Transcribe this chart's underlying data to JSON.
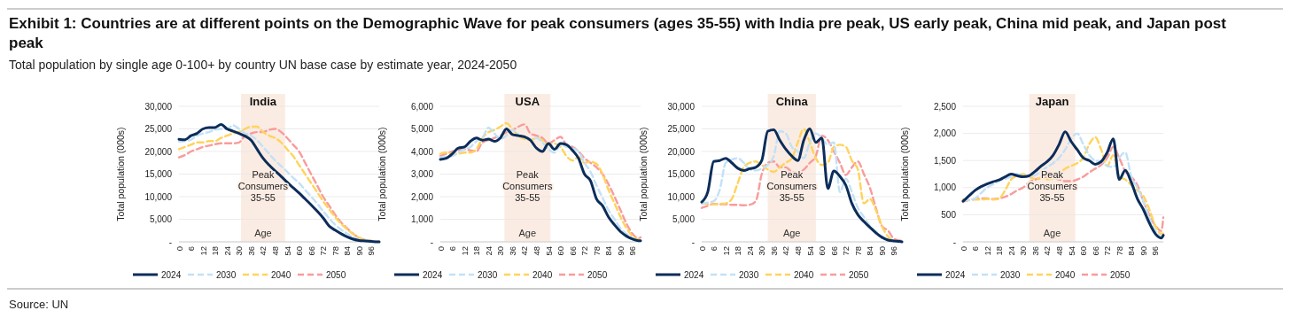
{
  "chart_data": [
    {
      "type": "other",
      "title": "Exhibit 1: Countries are at different points on the Demographic Wave for peak consumers (ages 35-55) with India pre peak, US early peak, China mid peak, and Japan post peak",
      "subtitle": "Total population by single age 0-100+ by country UN base case by estimate year, 2024-2050",
      "annotations": [
        "Source: UN"
      ]
    },
    {
      "type": "line",
      "title": "India",
      "xlabel": "Age",
      "ylabel": "Total population (000s)",
      "legend": "bottom",
      "grid": "y",
      "x": [
        0,
        3,
        6,
        9,
        12,
        15,
        18,
        21,
        24,
        27,
        30,
        33,
        36,
        39,
        42,
        45,
        48,
        51,
        54,
        57,
        60,
        63,
        66,
        69,
        72,
        75,
        78,
        81,
        84,
        87,
        90,
        93,
        96,
        99,
        100
      ],
      "xlim": [
        0,
        100
      ],
      "xticks": [
        0,
        6,
        12,
        18,
        24,
        30,
        36,
        42,
        48,
        54,
        60,
        66,
        72,
        78,
        84,
        90,
        96
      ],
      "ylim": [
        0,
        30000
      ],
      "yticks": [
        {
          "value": 0,
          "label": "-"
        },
        {
          "value": 5000,
          "label": "5,000"
        },
        {
          "value": 10000,
          "label": "10,000"
        },
        {
          "value": 15000,
          "label": "15,000"
        },
        {
          "value": 20000,
          "label": "20,000"
        },
        {
          "value": 25000,
          "label": "25,000"
        },
        {
          "value": 30000,
          "label": "30,000"
        }
      ],
      "bands": [
        {
          "axis": "x",
          "from": 31,
          "to": 53,
          "label": "Peak Consumers 35-55",
          "color": "#fbece3"
        }
      ],
      "series": [
        {
          "name": "2024",
          "color": "#0c2d5a",
          "line_style": "solid",
          "values": [
            22700,
            22600,
            23500,
            24000,
            25000,
            25300,
            25300,
            26000,
            25000,
            24500,
            24000,
            23400,
            22500,
            20500,
            18500,
            17000,
            15700,
            14500,
            13200,
            12000,
            10800,
            9500,
            8200,
            6800,
            5300,
            3500,
            2600,
            1800,
            1100,
            600,
            300,
            200,
            100,
            0,
            0
          ]
        },
        {
          "name": "2030",
          "color": "#c2e1f7",
          "line_style": "dashed",
          "values": [
            22200,
            22300,
            22600,
            23500,
            24000,
            24300,
            24800,
            25000,
            25000,
            25800,
            25000,
            24000,
            23500,
            22500,
            21000,
            19500,
            18000,
            16800,
            15500,
            14200,
            13000,
            11500,
            10000,
            8500,
            6800,
            5200,
            3800,
            2700,
            1800,
            1000,
            500,
            300,
            100,
            100,
            0
          ]
        },
        {
          "name": "2040",
          "color": "#ffd35c",
          "line_style": "dashed",
          "values": [
            20500,
            21000,
            21500,
            22000,
            22000,
            22300,
            22300,
            23000,
            23500,
            24000,
            24300,
            25000,
            25500,
            25500,
            24300,
            23500,
            23000,
            22000,
            20500,
            19000,
            17000,
            15000,
            13000,
            11000,
            9000,
            7200,
            5500,
            4000,
            2800,
            1700,
            900,
            400,
            200,
            100,
            100
          ]
        },
        {
          "name": "2050",
          "color": "#f89c9c",
          "line_style": "dashed",
          "values": [
            18700,
            19200,
            20000,
            20500,
            21000,
            21300,
            21600,
            21800,
            21800,
            21800,
            22000,
            23500,
            24000,
            24300,
            24300,
            24800,
            25000,
            24300,
            23000,
            21500,
            20000,
            17500,
            15000,
            12500,
            10000,
            8000,
            6000,
            4300,
            3000,
            1800,
            900,
            400,
            200,
            100,
            100
          ]
        }
      ]
    },
    {
      "type": "line",
      "title": "USA",
      "xlabel": "Age",
      "ylabel": "Total population (000s)",
      "legend": "bottom",
      "grid": "y",
      "x": [
        0,
        3,
        6,
        9,
        12,
        15,
        18,
        21,
        24,
        27,
        30,
        33,
        36,
        39,
        42,
        45,
        48,
        51,
        54,
        57,
        60,
        63,
        66,
        69,
        72,
        75,
        78,
        81,
        84,
        87,
        90,
        93,
        96,
        99,
        100
      ],
      "xlim": [
        0,
        100
      ],
      "xticks": [
        0,
        6,
        12,
        18,
        24,
        30,
        36,
        42,
        48,
        54,
        60,
        66,
        72,
        78,
        84,
        90,
        96
      ],
      "ylim": [
        0,
        6000
      ],
      "yticks": [
        {
          "value": 0,
          "label": "-"
        },
        {
          "value": 1000,
          "label": "1,000"
        },
        {
          "value": 2000,
          "label": "2,000"
        },
        {
          "value": 3000,
          "label": "3,000"
        },
        {
          "value": 4000,
          "label": "4,000"
        },
        {
          "value": 5000,
          "label": "5,000"
        },
        {
          "value": 6000,
          "label": "6,000"
        }
      ],
      "bands": [
        {
          "axis": "x",
          "from": 32,
          "to": 55,
          "label": "Peak Consumers 35-55",
          "color": "#fbece3"
        }
      ],
      "series": [
        {
          "name": "2024",
          "color": "#0c2d5a",
          "line_style": "solid",
          "values": [
            3650,
            3700,
            3900,
            4150,
            4200,
            4450,
            4600,
            4500,
            4550,
            4450,
            4600,
            5000,
            4750,
            4700,
            4650,
            4500,
            4150,
            4000,
            4350,
            4100,
            4350,
            4300,
            4050,
            3700,
            3000,
            2700,
            1900,
            1600,
            1100,
            750,
            450,
            250,
            120,
            50,
            50
          ]
        },
        {
          "name": "2030",
          "color": "#c2e1f7",
          "line_style": "dashed",
          "values": [
            3750,
            3750,
            3800,
            3950,
            4100,
            4200,
            4450,
            4600,
            5050,
            4800,
            4550,
            4700,
            4950,
            4750,
            4600,
            4550,
            4600,
            4400,
            4100,
            3950,
            4300,
            4200,
            4150,
            4000,
            3500,
            3100,
            2500,
            1950,
            1400,
            1000,
            600,
            350,
            150,
            60,
            60
          ]
        },
        {
          "name": "2040",
          "color": "#ffd35c",
          "line_style": "dashed",
          "values": [
            3900,
            3950,
            3900,
            3900,
            3950,
            3950,
            4100,
            4600,
            4850,
            4950,
            5100,
            5250,
            5000,
            4700,
            4550,
            4500,
            4600,
            4500,
            4300,
            4350,
            4200,
            3800,
            3600,
            3750,
            3500,
            3550,
            3450,
            3000,
            2300,
            1700,
            1100,
            600,
            250,
            100,
            80
          ]
        },
        {
          "name": "2050",
          "color": "#f89c9c",
          "line_style": "dashed",
          "values": [
            3800,
            3900,
            4000,
            4050,
            4100,
            4050,
            4000,
            4400,
            4500,
            4600,
            4700,
            4850,
            4950,
            5100,
            5200,
            4800,
            4700,
            4600,
            4350,
            4500,
            4650,
            4300,
            4200,
            4000,
            3700,
            3500,
            3300,
            3000,
            2550,
            2000,
            1400,
            800,
            350,
            150,
            200
          ]
        }
      ]
    },
    {
      "type": "line",
      "title": "China",
      "xlabel": "Age",
      "ylabel": "Total population (000s)",
      "legend": "bottom",
      "grid": "y",
      "x": [
        0,
        3,
        6,
        9,
        12,
        15,
        18,
        21,
        24,
        27,
        30,
        33,
        36,
        39,
        42,
        45,
        48,
        51,
        54,
        57,
        60,
        63,
        66,
        69,
        72,
        75,
        78,
        81,
        84,
        87,
        90,
        93,
        96,
        99,
        100
      ],
      "xlim": [
        0,
        100
      ],
      "xticks": [
        0,
        6,
        12,
        18,
        24,
        30,
        36,
        42,
        48,
        54,
        60,
        66,
        72,
        78,
        84,
        90,
        96
      ],
      "ylim": [
        0,
        30000
      ],
      "yticks": [
        {
          "value": 0,
          "label": "-"
        },
        {
          "value": 5000,
          "label": "5,000"
        },
        {
          "value": 10000,
          "label": "10,000"
        },
        {
          "value": 15000,
          "label": "15,000"
        },
        {
          "value": 20000,
          "label": "20,000"
        },
        {
          "value": 25000,
          "label": "25,000"
        },
        {
          "value": 30000,
          "label": "30,000"
        }
      ],
      "bands": [
        {
          "axis": "x",
          "from": 33,
          "to": 57,
          "label": "Peak Consumers 35-55",
          "color": "#fbece3"
        }
      ],
      "series": [
        {
          "name": "2024",
          "color": "#0c2d5a",
          "line_style": "solid",
          "values": [
            8800,
            11000,
            17800,
            18000,
            18500,
            17500,
            16300,
            15800,
            16200,
            16500,
            18000,
            24500,
            24800,
            22500,
            20500,
            19000,
            18000,
            22500,
            25000,
            22000,
            23000,
            11800,
            15700,
            14500,
            12500,
            8500,
            6000,
            4500,
            3200,
            2000,
            1000,
            400,
            200,
            100,
            0
          ]
        },
        {
          "name": "2030",
          "color": "#c2e1f7",
          "line_style": "dashed",
          "values": [
            8500,
            8700,
            9000,
            11500,
            17500,
            18200,
            18500,
            17500,
            16000,
            15800,
            16200,
            17000,
            19000,
            24500,
            24000,
            21000,
            20000,
            18500,
            22000,
            24000,
            23000,
            21500,
            22000,
            11000,
            14000,
            11000,
            7500,
            5500,
            3500,
            2300,
            1200,
            500,
            200,
            100,
            0
          ]
        },
        {
          "name": "2040",
          "color": "#ffd35c",
          "line_style": "dashed",
          "values": [
            8500,
            8400,
            8300,
            8400,
            8500,
            9500,
            13000,
            16500,
            17500,
            17800,
            17000,
            16000,
            15500,
            16500,
            17500,
            18500,
            22000,
            25000,
            22000,
            18500,
            17000,
            17500,
            21000,
            21500,
            21000,
            18000,
            16000,
            8500,
            9500,
            7000,
            3500,
            1200,
            300,
            100,
            100
          ]
        },
        {
          "name": "2050",
          "color": "#f89c9c",
          "line_style": "dashed",
          "values": [
            7500,
            8000,
            8400,
            8300,
            8300,
            8200,
            8200,
            8100,
            8200,
            9000,
            15000,
            17500,
            17800,
            16500,
            16500,
            15500,
            15300,
            16000,
            17500,
            19000,
            23500,
            22500,
            20000,
            17500,
            14800,
            16500,
            17800,
            15000,
            12000,
            7500,
            3500,
            2500,
            700,
            300,
            200
          ]
        }
      ]
    },
    {
      "type": "line",
      "title": "Japan",
      "xlabel": "Age",
      "ylabel": "Total population (000s)",
      "legend": "bottom",
      "grid": "y",
      "x": [
        0,
        3,
        6,
        9,
        12,
        15,
        18,
        21,
        24,
        27,
        30,
        33,
        36,
        39,
        42,
        45,
        48,
        51,
        54,
        57,
        60,
        63,
        66,
        69,
        72,
        75,
        78,
        81,
        84,
        87,
        90,
        93,
        96,
        99,
        100
      ],
      "xlim": [
        0,
        100
      ],
      "xticks": [
        0,
        6,
        12,
        18,
        24,
        30,
        36,
        42,
        48,
        54,
        60,
        66,
        72,
        78,
        84,
        90,
        96
      ],
      "ylim": [
        0,
        2500
      ],
      "yticks": [
        {
          "value": 0,
          "label": "-"
        },
        500,
        {
          "value": 1000,
          "label": "1,000"
        },
        {
          "value": 1500,
          "label": "1,500"
        },
        {
          "value": 2000,
          "label": "2,000"
        },
        {
          "value": 2500,
          "label": "2,500"
        }
      ],
      "bands": [
        {
          "axis": "x",
          "from": 33,
          "to": 56,
          "label": "Peak Consumers 35-55",
          "color": "#fbece3"
        }
      ],
      "series": [
        {
          "name": "2024",
          "color": "#0c2d5a",
          "line_style": "solid",
          "values": [
            750,
            850,
            950,
            1020,
            1070,
            1110,
            1140,
            1200,
            1250,
            1220,
            1200,
            1220,
            1300,
            1400,
            1480,
            1600,
            1800,
            2030,
            1850,
            1700,
            1550,
            1500,
            1430,
            1480,
            1650,
            1900,
            1150,
            1320,
            1100,
            800,
            600,
            350,
            150,
            70,
            120
          ]
        },
        {
          "name": "2030",
          "color": "#c2e1f7",
          "line_style": "dashed",
          "values": [
            760,
            770,
            800,
            900,
            1000,
            1060,
            1120,
            1160,
            1200,
            1250,
            1220,
            1200,
            1230,
            1300,
            1380,
            1450,
            1550,
            1700,
            1900,
            2000,
            1800,
            1600,
            1500,
            1480,
            1400,
            1380,
            1550,
            1650,
            1200,
            1000,
            750,
            450,
            200,
            100,
            120
          ]
        },
        {
          "name": "2040",
          "color": "#ffd35c",
          "line_style": "dashed",
          "values": [
            780,
            770,
            780,
            780,
            790,
            780,
            800,
            950,
            1150,
            1220,
            1250,
            1200,
            1160,
            1180,
            1150,
            1170,
            1250,
            1350,
            1400,
            1450,
            1550,
            1800,
            1930,
            1700,
            1400,
            1600,
            1200,
            1150,
            1050,
            950,
            850,
            600,
            300,
            150,
            150
          ]
        },
        {
          "name": "2050",
          "color": "#f89c9c",
          "line_style": "dashed",
          "values": [
            740,
            770,
            790,
            800,
            800,
            790,
            800,
            830,
            880,
            950,
            1000,
            1100,
            1150,
            1180,
            1200,
            1180,
            1150,
            1120,
            1120,
            1150,
            1200,
            1280,
            1350,
            1420,
            1550,
            1750,
            1550,
            1300,
            1200,
            1050,
            750,
            500,
            300,
            200,
            450
          ]
        }
      ]
    }
  ]
}
